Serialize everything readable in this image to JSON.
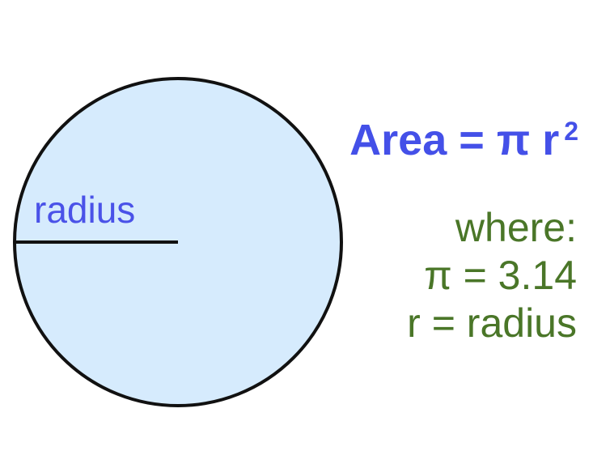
{
  "diagram": {
    "radius_label": "radius",
    "formula": {
      "lhs": "Area",
      "equals": "=",
      "pi": "π",
      "r": "r",
      "exponent": "2"
    },
    "definitions": {
      "where": "where:",
      "pi_value": "π = 3.14",
      "r_def": "r = radius"
    }
  },
  "colors": {
    "circle_fill": "#d6ebfd",
    "stroke": "#111111",
    "formula_blue": "#4450e8",
    "definition_green": "#4a7628"
  }
}
